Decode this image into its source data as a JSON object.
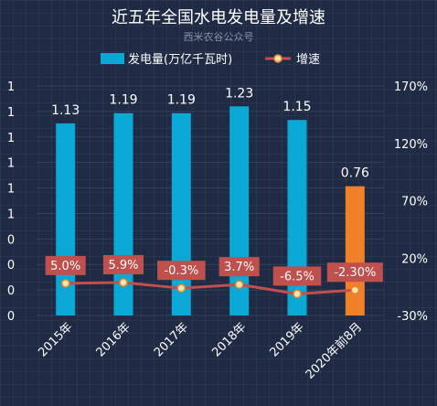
{
  "chart_data": {
    "type": "bar",
    "title": "近五年全国水电发电量及增速",
    "subtitle": "西米农谷公众号",
    "categories": [
      "2015年",
      "2016年",
      "2017年",
      "2018年",
      "2019年",
      "2020年前8月"
    ],
    "series": [
      {
        "name": "发电量(万亿千瓦时)",
        "type": "bar",
        "values": [
          1.13,
          1.19,
          1.19,
          1.23,
          1.15,
          0.76
        ],
        "color": "#0aa8d4",
        "highlight_color": "#f0812a",
        "highlight_index": 5
      },
      {
        "name": "增速",
        "type": "line",
        "values": [
          5.0,
          5.9,
          -0.3,
          3.7,
          -6.5,
          -2.3
        ],
        "labels": [
          "5.0%",
          "5.9%",
          "-0.3%",
          "3.7%",
          "-6.5%",
          "-2.30%"
        ],
        "color": "#c0504d"
      }
    ],
    "y_left": {
      "tick_labels": [
        "0",
        "0",
        "0",
        "0",
        "1",
        "1",
        "1",
        "1",
        "1",
        "1"
      ],
      "ylim": [
        0,
        1.35
      ]
    },
    "y_right": {
      "tick_labels": [
        "-30%",
        "20%",
        "70%",
        "120%",
        "170%"
      ],
      "ylim": [
        -30,
        220
      ]
    },
    "grid": true,
    "legend_position": "top-center"
  }
}
